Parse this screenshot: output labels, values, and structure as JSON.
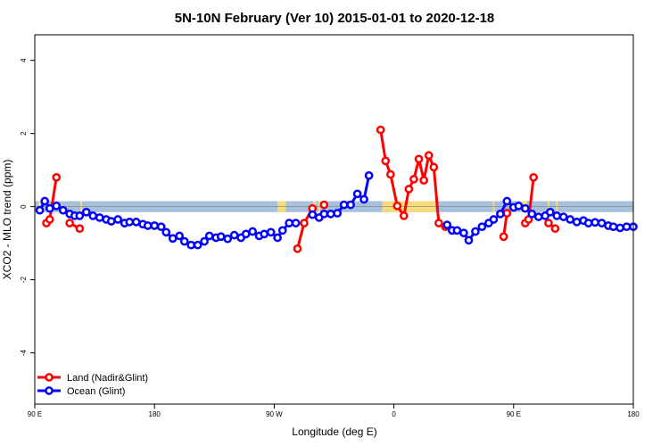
{
  "chart_data": {
    "type": "line",
    "title": "5N-10N February (Ver 10)   2015-01-01 to 2020-12-18",
    "xlabel": "Longitude (deg E)",
    "ylabel": "XCO2 - MLO trend (ppm)",
    "xlim": [
      90,
      450
    ],
    "ylim": [
      -5.4,
      4.7
    ],
    "x_ticks": [
      {
        "value": 90,
        "label": "90 E"
      },
      {
        "value": 162,
        "label": "180"
      },
      {
        "value": 234,
        "label": "90 W"
      },
      {
        "value": 306,
        "label": "0"
      },
      {
        "value": 378,
        "label": "90 E"
      },
      {
        "value": 450,
        "label": "180"
      }
    ],
    "y_ticks": [
      -4,
      -2,
      0,
      2,
      4
    ],
    "background_band": {
      "y_range": [
        -0.15,
        0.15
      ],
      "ocean_color": "#a8c0dc",
      "land_color": "#f8dc7c"
    },
    "land_segments": [
      [
        92,
        94
      ],
      [
        118,
        119
      ],
      [
        236,
        241
      ],
      [
        258,
        258
      ],
      [
        258.5,
        259.5
      ],
      [
        261,
        261
      ],
      [
        299,
        331
      ],
      [
        366,
        367
      ],
      [
        382,
        386
      ],
      [
        399,
        400
      ],
      [
        404,
        405
      ]
    ],
    "legend": {
      "position": "bottom-left"
    },
    "series": [
      {
        "name": "Land (Nadir&Glint)",
        "color": "#ff0000",
        "segments": [
          {
            "x": [
              97,
              99,
              103
            ],
            "y": [
              -0.45,
              -0.35,
              0.8
            ]
          },
          {
            "x": [
              111,
              117
            ],
            "y": [
              -0.45,
              -0.6
            ]
          },
          {
            "x": [
              248,
              252,
              257
            ],
            "y": [
              -1.15,
              -0.45,
              -0.05
            ]
          },
          {
            "x": [
              264
            ],
            "y": [
              0.05
            ]
          },
          {
            "x": [
              298,
              301,
              304,
              308,
              312,
              315,
              318,
              321,
              324,
              327,
              330,
              333,
              337,
              341
            ],
            "y": [
              2.1,
              1.25,
              0.88,
              0.02,
              -0.25,
              0.48,
              0.75,
              1.3,
              0.72,
              1.4,
              1.08,
              -0.45,
              -0.55,
              -0.65
            ]
          },
          {
            "x": [
              372,
              374
            ],
            "y": [
              -0.82,
              -0.18
            ]
          },
          {
            "x": [
              385,
              387,
              390
            ],
            "y": [
              -0.45,
              -0.35,
              0.8
            ]
          },
          {
            "x": [
              399,
              403
            ],
            "y": [
              -0.45,
              -0.6
            ]
          }
        ]
      },
      {
        "name": "Ocean (Glint)",
        "color": "#0000ff",
        "segments": [
          {
            "x": [
              93,
              96,
              99,
              103,
              107,
              111,
              114,
              117,
              121,
              125,
              129,
              133,
              136,
              140,
              144,
              147,
              151,
              155,
              158,
              162,
              166,
              169,
              173,
              177,
              180,
              184,
              188,
              192,
              195,
              199,
              202,
              206,
              210,
              214,
              217,
              221,
              225,
              228,
              232,
              236,
              239,
              243,
              247
            ],
            "y": [
              -0.1,
              0.15,
              -0.05,
              0.02,
              -0.1,
              -0.2,
              -0.25,
              -0.25,
              -0.15,
              -0.25,
              -0.3,
              -0.35,
              -0.4,
              -0.35,
              -0.45,
              -0.42,
              -0.42,
              -0.48,
              -0.52,
              -0.52,
              -0.55,
              -0.7,
              -0.87,
              -0.8,
              -0.95,
              -1.05,
              -1.05,
              -0.95,
              -0.8,
              -0.85,
              -0.82,
              -0.88,
              -0.78,
              -0.85,
              -0.75,
              -0.68,
              -0.8,
              -0.75,
              -0.7,
              -0.85,
              -0.65,
              -0.45,
              -0.45
            ]
          },
          {
            "x": [
              257,
              261,
              264,
              268,
              272,
              276,
              280,
              284,
              288,
              291
            ],
            "y": [
              -0.22,
              -0.3,
              -0.2,
              -0.2,
              -0.18,
              0.05,
              0.05,
              0.35,
              0.2,
              0.85
            ]
          },
          {
            "x": [
              338,
              341,
              344,
              348,
              351,
              355,
              359,
              363,
              366,
              370,
              374,
              378,
              381,
              385,
              389,
              393,
              397,
              400,
              404,
              408,
              412,
              416,
              420,
              423,
              427,
              431,
              435,
              438,
              442,
              446,
              450
            ],
            "y": [
              -0.5,
              -0.65,
              -0.65,
              -0.72,
              -0.92,
              -0.68,
              -0.55,
              -0.45,
              -0.35,
              -0.2,
              0.15,
              -0.02,
              0.02,
              -0.05,
              -0.2,
              -0.28,
              -0.25,
              -0.15,
              -0.25,
              -0.28,
              -0.35,
              -0.42,
              -0.38,
              -0.45,
              -0.43,
              -0.45,
              -0.52,
              -0.55,
              -0.58,
              -0.55,
              -0.55
            ]
          }
        ]
      }
    ]
  }
}
